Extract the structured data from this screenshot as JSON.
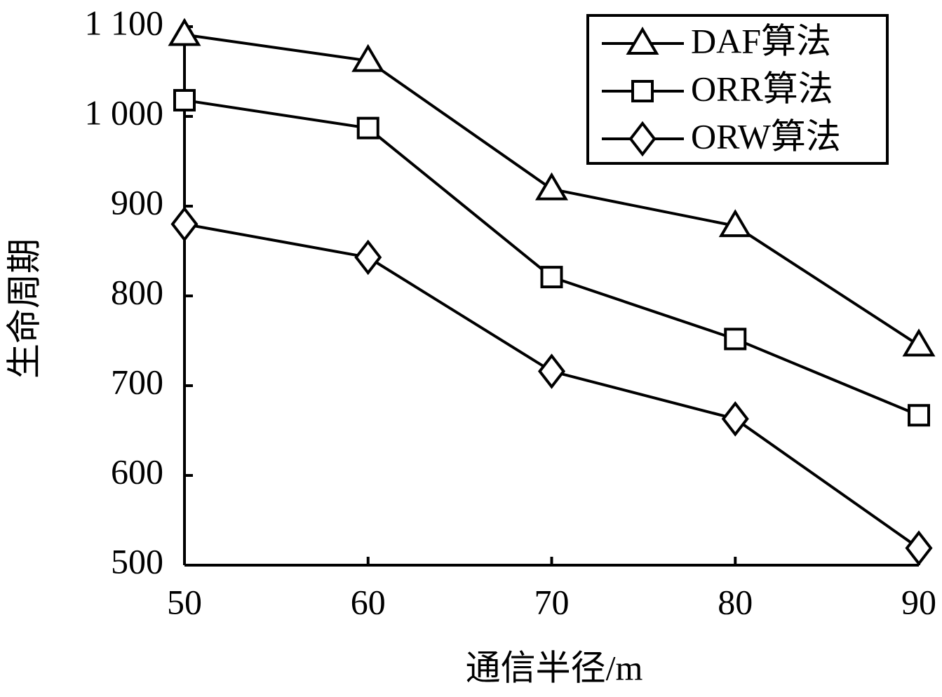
{
  "chart_data": {
    "type": "line",
    "x_label": "通信半径/m",
    "y_label": "生命周期",
    "x": [
      50,
      60,
      70,
      80,
      90
    ],
    "series": [
      {
        "name": "DAF算法",
        "color": "#000000",
        "marker": "triangle",
        "values": [
          1091,
          1062,
          919,
          878,
          745
        ]
      },
      {
        "name": "ORR算法",
        "color": "#000000",
        "marker": "square",
        "values": [
          1018,
          987,
          821,
          752,
          667
        ]
      },
      {
        "name": "ORW算法",
        "color": "#000000",
        "marker": "diamond",
        "values": [
          880,
          843,
          716,
          663,
          519
        ]
      }
    ],
    "xlim": [
      50,
      90
    ],
    "xticks": [
      50,
      60,
      70,
      80,
      90
    ],
    "ylim": [
      500,
      1100
    ],
    "yticks": [
      500,
      600,
      700,
      800,
      900,
      {
        "value": 1000,
        "label": "1 000"
      },
      {
        "value": 1100,
        "label": "1 100"
      }
    ],
    "legend": "upper right",
    "grid": false
  }
}
